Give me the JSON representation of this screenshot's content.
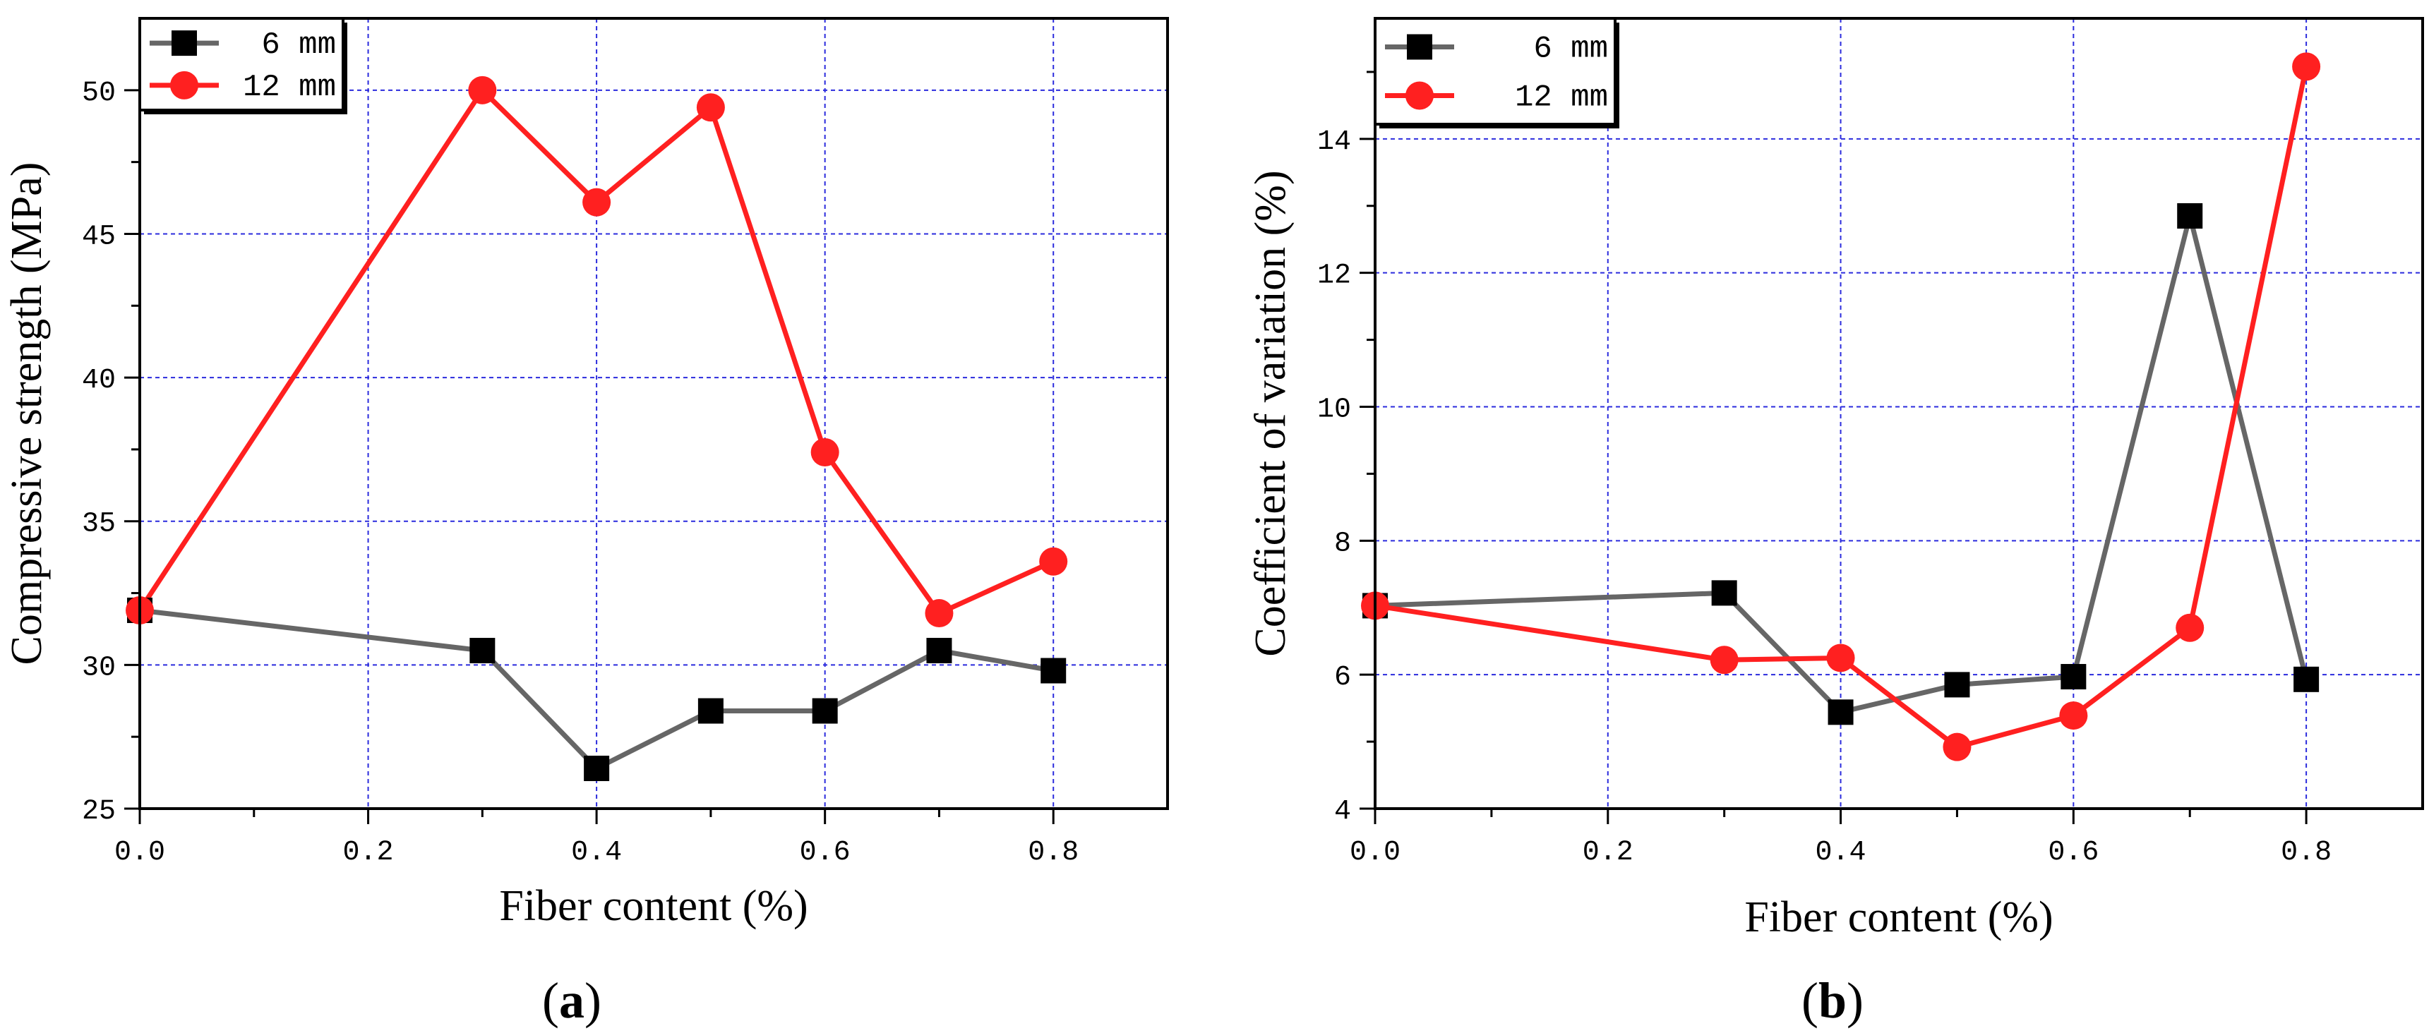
{
  "chart_data": [
    {
      "type": "line",
      "panel": "a",
      "caption_open": "(",
      "caption_letter": "a",
      "caption_close": ")",
      "xlabel": "Fiber content (%)",
      "ylabel": "Compressive strength (MPa)",
      "xlim": [
        0,
        0.9
      ],
      "ylim": [
        25,
        52.5
      ],
      "xticks": [
        0,
        0.2,
        0.4,
        0.6,
        0.8
      ],
      "xtick_labels": [
        "0.0",
        "0.2",
        "0.4",
        "0.6",
        "0.8"
      ],
      "yticks": [
        25,
        30,
        35,
        40,
        45,
        50
      ],
      "ytick_labels": [
        "25",
        "30",
        "35",
        "40",
        "45",
        "50"
      ],
      "grid": true,
      "legend_position": "top-left",
      "series": [
        {
          "name": "6 mm",
          "color": "#666666",
          "marker": "square",
          "marker_color": "#000000",
          "x": [
            0,
            0.3,
            0.4,
            0.5,
            0.6,
            0.7,
            0.8
          ],
          "values": [
            31.9,
            30.5,
            26.4,
            28.4,
            28.4,
            30.5,
            29.8
          ]
        },
        {
          "name": "12 mm",
          "color": "#ff2020",
          "marker": "circle",
          "marker_color": "#ff2020",
          "x": [
            0,
            0.3,
            0.4,
            0.5,
            0.6,
            0.7,
            0.8
          ],
          "values": [
            31.9,
            50.0,
            46.1,
            49.4,
            37.4,
            31.8,
            33.6
          ]
        }
      ]
    },
    {
      "type": "line",
      "panel": "b",
      "caption_open": "(",
      "caption_letter": "b",
      "caption_close": ")",
      "xlabel": "Fiber content (%)",
      "ylabel": "Coefficient of variation (%)",
      "xlim": [
        0,
        0.9
      ],
      "ylim": [
        4,
        15.8
      ],
      "xticks": [
        0,
        0.2,
        0.4,
        0.6,
        0.8
      ],
      "xtick_labels": [
        "0.0",
        "0.2",
        "0.4",
        "0.6",
        "0.8"
      ],
      "yticks": [
        4,
        6,
        8,
        10,
        12,
        14
      ],
      "ytick_labels": [
        "4",
        "6",
        "8",
        "10",
        "12",
        "14"
      ],
      "grid": true,
      "legend_position": "top-left",
      "series": [
        {
          "name": "6 mm",
          "color": "#666666",
          "marker": "square",
          "marker_color": "#000000",
          "x": [
            0,
            0.3,
            0.4,
            0.5,
            0.6,
            0.7,
            0.8
          ],
          "values": [
            7.03,
            7.22,
            5.44,
            5.85,
            5.97,
            12.85,
            5.93
          ]
        },
        {
          "name": "12 mm",
          "color": "#ff2020",
          "marker": "circle",
          "marker_color": "#ff2020",
          "x": [
            0,
            0.3,
            0.4,
            0.5,
            0.6,
            0.7,
            0.8
          ],
          "values": [
            7.03,
            6.22,
            6.25,
            4.92,
            5.39,
            6.7,
            15.08
          ]
        }
      ]
    }
  ]
}
